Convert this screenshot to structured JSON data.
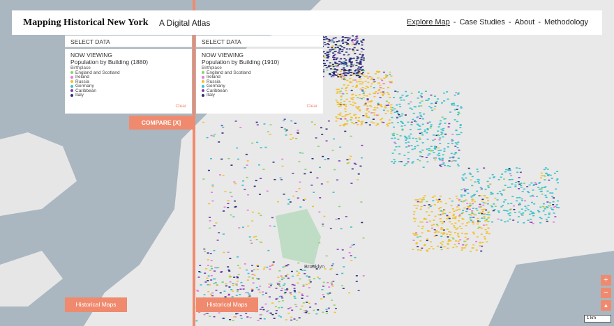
{
  "header": {
    "title": "Mapping Historical New York",
    "subtitle": "A Digital Atlas",
    "nav": [
      "Explore Map",
      "Case Studies",
      "About",
      "Methodology"
    ],
    "separator": "-"
  },
  "panels": [
    {
      "select": "SELECT DATA",
      "viewing_label": "NOW VIEWING",
      "dataset": "Population by Building (1880)",
      "field": "Birthplace",
      "legend": [
        {
          "label": "England and Scotland",
          "color": "#8bd36a"
        },
        {
          "label": "Ireland",
          "color": "#e87ad8"
        },
        {
          "label": "Russia",
          "color": "#f2c12e"
        },
        {
          "label": "Germany",
          "color": "#3cc3c9"
        },
        {
          "label": "Caribbean",
          "color": "#7b3fb5"
        },
        {
          "label": "Italy",
          "color": "#2a2f7a"
        }
      ],
      "clear": "Clear",
      "historical": "Historical Maps"
    },
    {
      "select": "SELECT DATA",
      "viewing_label": "NOW VIEWING",
      "dataset": "Population by Building (1910)",
      "field": "Birthplace",
      "legend": [
        {
          "label": "England and Scotland",
          "color": "#8bd36a"
        },
        {
          "label": "Ireland",
          "color": "#e87ad8"
        },
        {
          "label": "Russia",
          "color": "#f2c12e"
        },
        {
          "label": "Germany",
          "color": "#3cc3c9"
        },
        {
          "label": "Caribbean",
          "color": "#7b3fb5"
        },
        {
          "label": "Italy",
          "color": "#2a2f7a"
        }
      ],
      "clear": "Clear",
      "historical": "Historical Maps"
    }
  ],
  "compare": "COMPARE [X]",
  "map": {
    "label": "Brooklyn",
    "zoom_in": "+",
    "zoom_out": "−",
    "reset": "▲",
    "scale": "1 km"
  }
}
